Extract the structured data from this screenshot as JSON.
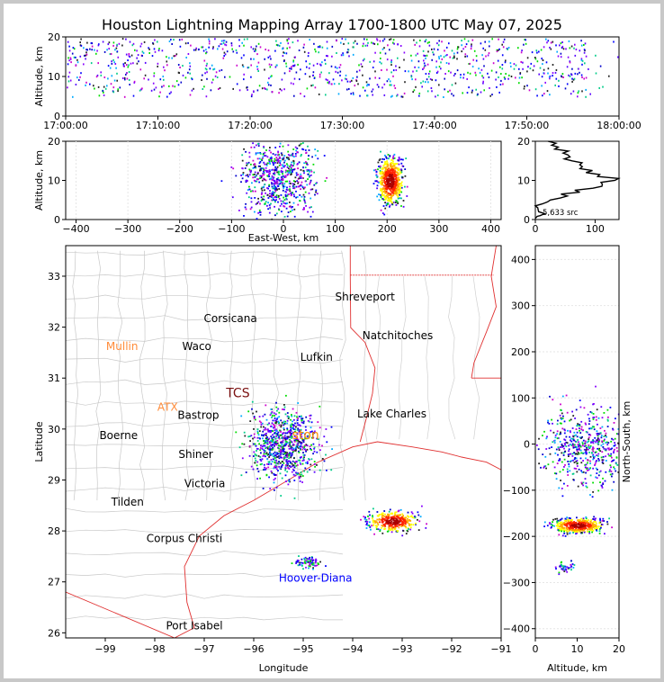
{
  "title": "Houston Lightning Mapping Array 1700-1800 UTC May 07, 2025",
  "chart_data": [
    {
      "panel": "time-altitude",
      "type": "scatter",
      "ylabel": "Altitude, km",
      "x_range": [
        "17:00:00",
        "18:00:00"
      ],
      "ylim": [
        0,
        20
      ],
      "x_ticks": [
        "17:00:00",
        "17:10:00",
        "17:20:00",
        "17:30:00",
        "17:40:00",
        "17:50:00",
        "18:00:00"
      ],
      "y_ticks": [
        "0",
        "10",
        "20"
      ],
      "source_band_km": [
        5,
        20
      ]
    },
    {
      "panel": "east-west-altitude",
      "type": "scatter",
      "xlabel": "East-West, km",
      "ylabel": "Altitude, km",
      "xlim": [
        -420,
        420
      ],
      "ylim": [
        0,
        20
      ],
      "x_ticks": [
        "−400",
        "−300",
        "−200",
        "−100",
        "0",
        "100",
        "200",
        "300",
        "400"
      ],
      "y_ticks": [
        "0",
        "10",
        "20"
      ],
      "clusters": [
        {
          "ew_km": -10,
          "alt_km": 11,
          "spread_ew": 35,
          "spread_alt": 5
        },
        {
          "ew_km": 205,
          "alt_km": 10,
          "spread_ew": 12,
          "spread_alt": 3
        }
      ]
    },
    {
      "panel": "altitude-histogram",
      "type": "line",
      "xlim": [
        0,
        140
      ],
      "ylim": [
        0,
        20
      ],
      "x_ticks": [
        "0",
        "100"
      ],
      "y_ticks": [
        "0",
        "10",
        "20"
      ],
      "annotation": "5,633 src",
      "profile": [
        {
          "alt": 0.3,
          "count": 2
        },
        {
          "alt": 1,
          "count": 5
        },
        {
          "alt": 2,
          "count": 6
        },
        {
          "alt": 3,
          "count": 8
        },
        {
          "alt": 4,
          "count": 12
        },
        {
          "alt": 5,
          "count": 30
        },
        {
          "alt": 6,
          "count": 50
        },
        {
          "alt": 7,
          "count": 75
        },
        {
          "alt": 8,
          "count": 100
        },
        {
          "alt": 9,
          "count": 115
        },
        {
          "alt": 10,
          "count": 130
        },
        {
          "alt": 11,
          "count": 110
        },
        {
          "alt": 12,
          "count": 90
        },
        {
          "alt": 13,
          "count": 80
        },
        {
          "alt": 14,
          "count": 70
        },
        {
          "alt": 15,
          "count": 60
        },
        {
          "alt": 16,
          "count": 55
        },
        {
          "alt": 17,
          "count": 45
        },
        {
          "alt": 18,
          "count": 35
        },
        {
          "alt": 19,
          "count": 30
        },
        {
          "alt": 20,
          "count": 20
        }
      ]
    },
    {
      "panel": "map",
      "type": "scatter",
      "xlabel": "Longitude",
      "ylabel": "Latitude",
      "xlim": [
        -99.8,
        -91
      ],
      "ylim": [
        25.9,
        33.6
      ],
      "x_ticks": [
        "−99",
        "−98",
        "−97",
        "−96",
        "−95",
        "−94",
        "−93",
        "−92",
        "−91"
      ],
      "y_ticks": [
        "26",
        "27",
        "28",
        "29",
        "30",
        "31",
        "32",
        "33"
      ],
      "cities": [
        {
          "name": "Shreveport",
          "lon": -93.75,
          "lat": 32.52,
          "color": "#000000"
        },
        {
          "name": "Corsicana",
          "lon": -96.47,
          "lat": 32.1,
          "color": "#000000"
        },
        {
          "name": "Natchitoches",
          "lon": -93.09,
          "lat": 31.76,
          "color": "#000000"
        },
        {
          "name": "Mullin",
          "lon": -98.66,
          "lat": 31.55,
          "color": "#ff8c3a"
        },
        {
          "name": "Waco",
          "lon": -97.15,
          "lat": 31.55,
          "color": "#000000"
        },
        {
          "name": "Lufkin",
          "lon": -94.73,
          "lat": 31.34,
          "color": "#000000"
        },
        {
          "name": "TCS",
          "lon": -96.32,
          "lat": 30.62,
          "color": "#7a1010"
        },
        {
          "name": "ATX",
          "lon": -97.74,
          "lat": 30.36,
          "color": "#ff8c3a"
        },
        {
          "name": "Bastrop",
          "lon": -97.12,
          "lat": 30.2,
          "color": "#000000"
        },
        {
          "name": "Lake Charles",
          "lon": -93.21,
          "lat": 30.23,
          "color": "#000000"
        },
        {
          "name": "Boerne",
          "lon": -98.73,
          "lat": 29.8,
          "color": "#000000"
        },
        {
          "name": "ston",
          "lon": -94.95,
          "lat": 29.8,
          "color": "#ff8c00"
        },
        {
          "name": "Shiner",
          "lon": -97.17,
          "lat": 29.43,
          "color": "#000000"
        },
        {
          "name": "Victoria",
          "lon": -96.99,
          "lat": 28.86,
          "color": "#000000"
        },
        {
          "name": "Tilden",
          "lon": -98.55,
          "lat": 28.5,
          "color": "#000000"
        },
        {
          "name": "Corpus Christi",
          "lon": -97.4,
          "lat": 27.78,
          "color": "#000000"
        },
        {
          "name": "Hoover-Diana",
          "lon": -94.75,
          "lat": 27.0,
          "color": "#0000ff"
        },
        {
          "name": "Port Isabel",
          "lon": -97.2,
          "lat": 26.07,
          "color": "#000000"
        }
      ],
      "clusters": [
        {
          "lon": -95.4,
          "lat": 29.7,
          "spread_lon": 0.35,
          "spread_lat": 0.35
        },
        {
          "lon": -93.2,
          "lat": 28.2,
          "spread_lon": 0.25,
          "spread_lat": 0.1
        },
        {
          "lon": -94.9,
          "lat": 27.4,
          "spread_lon": 0.15,
          "spread_lat": 0.06
        }
      ]
    },
    {
      "panel": "altitude-north-south",
      "type": "scatter",
      "xlabel": "Altitude, km",
      "ylabel": "North-South, km",
      "xlim": [
        0,
        20
      ],
      "ylim": [
        -420,
        430
      ],
      "x_ticks": [
        "0",
        "10",
        "20"
      ],
      "y_ticks": [
        "−400",
        "−300",
        "−200",
        "−100",
        "0",
        "100",
        "200",
        "300",
        "400"
      ],
      "clusters": [
        {
          "ns_km": -10,
          "alt_km": 12,
          "spread_ns": 45,
          "spread_alt": 5
        },
        {
          "ns_km": -175,
          "alt_km": 10,
          "spread_ns": 8,
          "spread_alt": 3
        }
      ]
    }
  ]
}
